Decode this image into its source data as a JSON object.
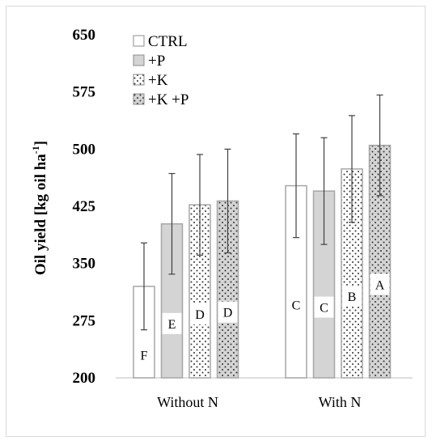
{
  "chart_data": {
    "type": "bar",
    "ylabel": "Oil yield [kg oil ha",
    "ylabel_sup": "-1",
    "ylabel_end": "]",
    "ylim": [
      200,
      650
    ],
    "yticks": [
      "200",
      "275",
      "350",
      "425",
      "500",
      "575",
      "650"
    ],
    "categories": [
      "Without N",
      "With N"
    ],
    "legend_position": "top-left",
    "series": [
      {
        "name": "CTRL",
        "pattern": "white",
        "values": [
          320,
          452
        ],
        "errors": [
          57,
          68
        ],
        "letters": [
          "F",
          "C"
        ]
      },
      {
        "name": "+P",
        "pattern": "gray",
        "values": [
          402,
          445
        ],
        "errors": [
          66,
          70
        ],
        "letters": [
          "E",
          "C"
        ]
      },
      {
        "name": "+K",
        "pattern": "dots",
        "values": [
          427,
          474
        ],
        "errors": [
          66,
          70
        ],
        "letters": [
          "D",
          "B"
        ]
      },
      {
        "name": "+K +P",
        "pattern": "gray-dots",
        "values": [
          432,
          505
        ],
        "errors": [
          68,
          66
        ],
        "letters": [
          "D",
          "A"
        ]
      }
    ]
  }
}
